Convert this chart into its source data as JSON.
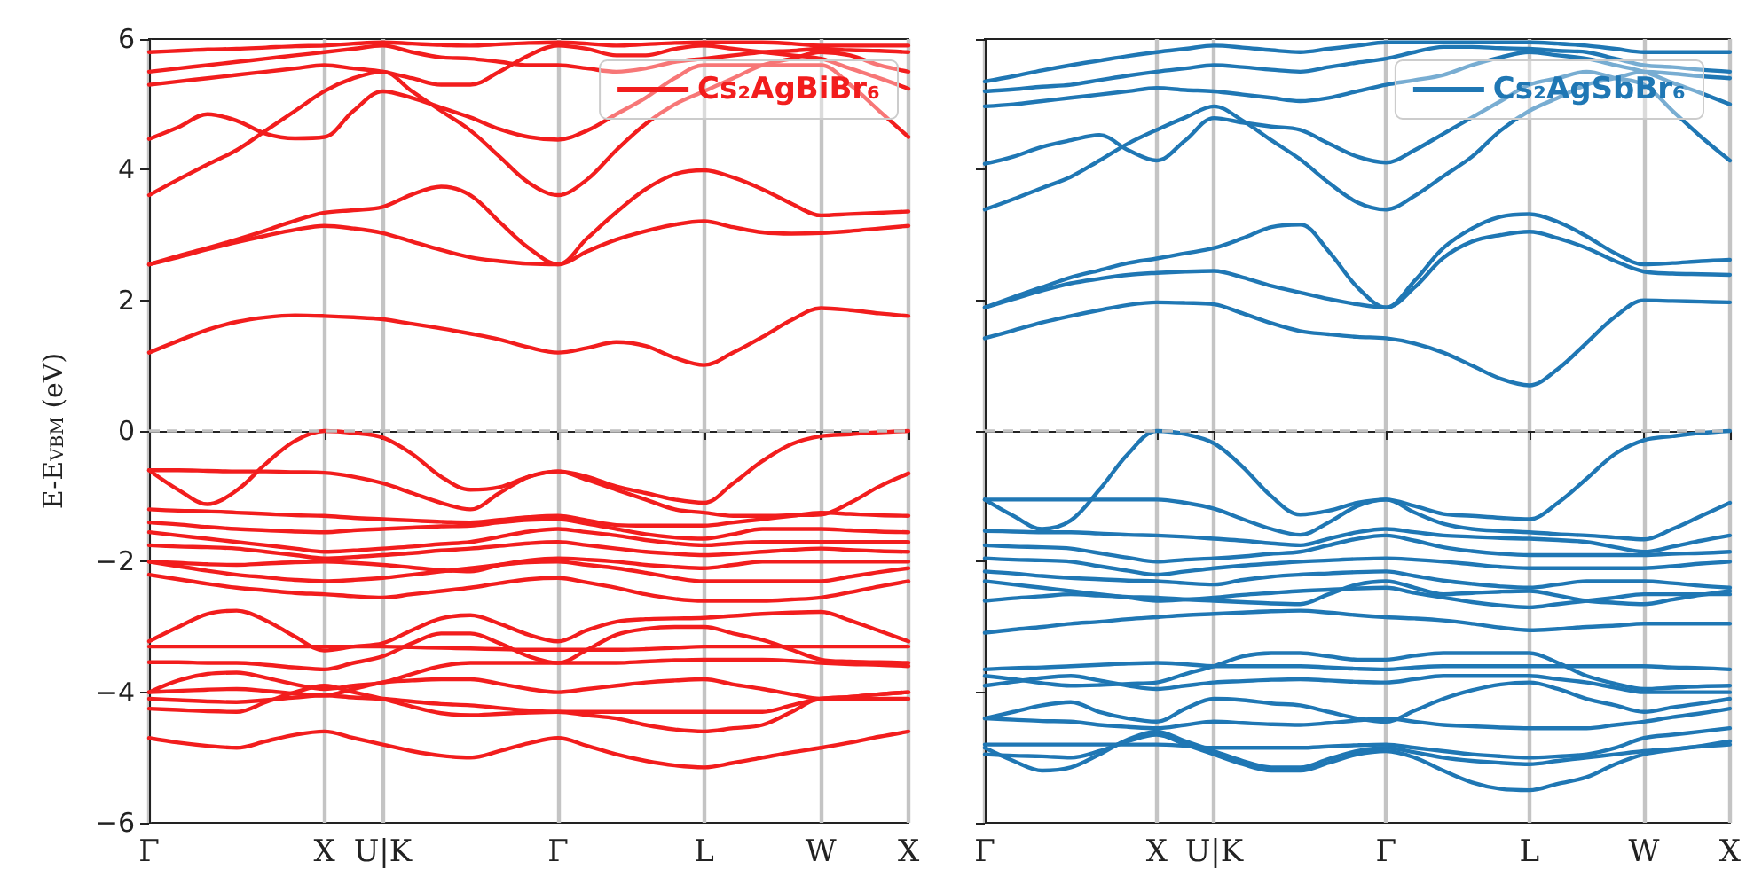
{
  "chart_data": [
    {
      "type": "line",
      "ylabel": "E-E$_{VBM}$ (eV)",
      "categories": [
        "Γ",
        null,
        null,
        null,
        null,
        null,
        "X",
        null,
        "U|K",
        null,
        null,
        null,
        null,
        null,
        "Γ",
        null,
        null,
        null,
        null,
        "L",
        null,
        null,
        null,
        "W",
        null,
        null,
        "X"
      ],
      "ylim": [
        -6,
        6
      ],
      "yticks": [
        -6,
        -4,
        -2,
        0,
        2,
        4,
        6
      ],
      "grid": "x",
      "legend": "top right",
      "marker": "none",
      "line_style": "solid",
      "ref_lines": [
        {
          "axis": "y",
          "value": 0,
          "color": "#c0c0c0",
          "line_style": "dashed"
        }
      ],
      "series": [
        {
          "name": "Cs₂AgBiBr₆",
          "color": "#f21d1d",
          "values": [
            1.2,
            1.38,
            1.55,
            1.67,
            1.74,
            1.77,
            1.76,
            1.74,
            1.71,
            1.64,
            1.57,
            1.49,
            1.4,
            1.28,
            1.2,
            1.27,
            1.36,
            1.3,
            1.12,
            1.01,
            1.2,
            1.44,
            1.7,
            1.88,
            1.85,
            1.8,
            1.76
          ]
        },
        {
          "color": "#f21d1d",
          "values": [
            2.55,
            2.66,
            2.78,
            2.89,
            2.99,
            3.08,
            3.14,
            3.1,
            3.03,
            2.9,
            2.77,
            2.66,
            2.6,
            2.56,
            2.55,
            2.75,
            2.93,
            3.06,
            3.16,
            3.21,
            3.12,
            3.04,
            3.02,
            3.03,
            3.06,
            3.1,
            3.14
          ]
        },
        {
          "color": "#f21d1d",
          "values": [
            2.55,
            2.68,
            2.8,
            2.93,
            3.07,
            3.22,
            3.34,
            3.38,
            3.43,
            3.62,
            3.74,
            3.61,
            3.2,
            2.8,
            2.55,
            2.95,
            3.35,
            3.7,
            3.93,
            3.99,
            3.88,
            3.7,
            3.48,
            3.3,
            3.32,
            3.34,
            3.36
          ]
        },
        {
          "color": "#f21d1d",
          "values": [
            3.61,
            3.85,
            4.08,
            4.3,
            4.6,
            4.9,
            5.2,
            5.4,
            5.5,
            5.2,
            4.9,
            4.6,
            4.2,
            3.8,
            3.61,
            3.85,
            4.3,
            4.7,
            5.0,
            5.2,
            5.4,
            5.6,
            5.7,
            5.8,
            5.75,
            5.6,
            5.5
          ]
        },
        {
          "color": "#f21d1d",
          "values": [
            4.47,
            4.65,
            4.85,
            4.75,
            4.55,
            4.48,
            4.5,
            4.9,
            5.2,
            5.1,
            4.95,
            4.8,
            4.62,
            4.5,
            4.46,
            4.6,
            4.85,
            5.1,
            5.4,
            5.6,
            5.6,
            5.6,
            5.6,
            5.6,
            5.3,
            4.9,
            4.5
          ]
        },
        {
          "color": "#f21d1d",
          "values": [
            5.3,
            5.35,
            5.4,
            5.45,
            5.5,
            5.55,
            5.6,
            5.55,
            5.5,
            5.4,
            5.3,
            5.3,
            5.5,
            5.75,
            5.9,
            5.85,
            5.75,
            5.75,
            5.85,
            5.9,
            5.85,
            5.8,
            5.75,
            5.7,
            5.55,
            5.4,
            5.24
          ]
        },
        {
          "color": "#f21d1d",
          "values": [
            5.5,
            5.55,
            5.6,
            5.65,
            5.7,
            5.75,
            5.8,
            5.85,
            5.9,
            5.8,
            5.72,
            5.7,
            5.65,
            5.6,
            5.6,
            5.55,
            5.5,
            5.55,
            5.65,
            5.7,
            5.75,
            5.8,
            5.82,
            5.85,
            5.83,
            5.82,
            5.8
          ]
        },
        {
          "color": "#f21d1d",
          "values": [
            5.8,
            5.82,
            5.84,
            5.85,
            5.87,
            5.89,
            5.9,
            5.93,
            5.95,
            5.93,
            5.91,
            5.9,
            5.92,
            5.94,
            5.95,
            5.93,
            5.9,
            5.92,
            5.94,
            5.95,
            5.95,
            5.95,
            5.93,
            5.9,
            5.9,
            5.9,
            5.9
          ]
        },
        {
          "color": "#f21d1d",
          "values": [
            -0.6,
            -0.9,
            -1.12,
            -0.91,
            -0.5,
            -0.15,
            0,
            -0.03,
            -0.1,
            -0.35,
            -0.7,
            -0.9,
            -0.86,
            -0.7,
            -0.62,
            -0.7,
            -0.85,
            -0.95,
            -1.05,
            -1.1,
            -0.8,
            -0.46,
            -0.2,
            -0.08,
            -0.05,
            -0.02,
            0
          ]
        },
        {
          "color": "#f21d1d",
          "values": [
            -0.6,
            -0.6,
            -0.61,
            -0.62,
            -0.62,
            -0.63,
            -0.64,
            -0.7,
            -0.8,
            -0.95,
            -1.1,
            -1.2,
            -0.95,
            -0.7,
            -0.62,
            -0.75,
            -0.9,
            -1.05,
            -1.2,
            -1.25,
            -1.3,
            -1.3,
            -1.29,
            -1.28,
            -1.1,
            -0.85,
            -0.65
          ]
        },
        {
          "color": "#f21d1d",
          "values": [
            -1.2,
            -1.22,
            -1.23,
            -1.25,
            -1.27,
            -1.29,
            -1.3,
            -1.33,
            -1.35,
            -1.37,
            -1.39,
            -1.4,
            -1.36,
            -1.32,
            -1.3,
            -1.37,
            -1.44,
            -1.45,
            -1.45,
            -1.45,
            -1.4,
            -1.35,
            -1.3,
            -1.25,
            -1.27,
            -1.29,
            -1.3
          ]
        },
        {
          "color": "#f21d1d",
          "values": [
            -1.4,
            -1.43,
            -1.47,
            -1.5,
            -1.52,
            -1.54,
            -1.55,
            -1.52,
            -1.5,
            -1.48,
            -1.46,
            -1.45,
            -1.4,
            -1.36,
            -1.35,
            -1.42,
            -1.5,
            -1.58,
            -1.63,
            -1.65,
            -1.58,
            -1.5,
            -1.5,
            -1.5,
            -1.52,
            -1.54,
            -1.55
          ]
        },
        {
          "color": "#f21d1d",
          "values": [
            -1.55,
            -1.6,
            -1.65,
            -1.7,
            -1.75,
            -1.8,
            -1.85,
            -1.83,
            -1.8,
            -1.77,
            -1.73,
            -1.7,
            -1.62,
            -1.54,
            -1.5,
            -1.55,
            -1.6,
            -1.67,
            -1.72,
            -1.75,
            -1.72,
            -1.7,
            -1.7,
            -1.7,
            -1.7,
            -1.7,
            -1.7
          ]
        },
        {
          "color": "#f21d1d",
          "values": [
            -1.75,
            -1.77,
            -1.78,
            -1.8,
            -1.85,
            -1.9,
            -1.95,
            -1.93,
            -1.9,
            -1.87,
            -1.83,
            -1.8,
            -1.76,
            -1.72,
            -1.7,
            -1.75,
            -1.8,
            -1.85,
            -1.88,
            -1.9,
            -1.88,
            -1.85,
            -1.82,
            -1.8,
            -1.82,
            -1.84,
            -1.85
          ]
        },
        {
          "color": "#f21d1d",
          "values": [
            -2.0,
            -2.02,
            -2.04,
            -2.05,
            -2.03,
            -2.01,
            -2.0,
            -2.02,
            -2.05,
            -2.09,
            -2.13,
            -2.15,
            -2.05,
            -1.98,
            -1.95,
            -1.97,
            -2.0,
            -2.05,
            -2.08,
            -2.1,
            -2.05,
            -2.0,
            -2.0,
            -2.0,
            -2.0,
            -2.0,
            -2.0
          ]
        },
        {
          "color": "#f21d1d",
          "values": [
            -2.0,
            -2.07,
            -2.14,
            -2.2,
            -2.24,
            -2.28,
            -2.3,
            -2.28,
            -2.25,
            -2.2,
            -2.15,
            -2.1,
            -2.05,
            -2.01,
            -2.0,
            -2.05,
            -2.1,
            -2.17,
            -2.25,
            -2.3,
            -2.3,
            -2.3,
            -2.3,
            -2.3,
            -2.23,
            -2.16,
            -2.1
          ]
        },
        {
          "color": "#f21d1d",
          "values": [
            -2.2,
            -2.27,
            -2.34,
            -2.4,
            -2.44,
            -2.48,
            -2.5,
            -2.53,
            -2.55,
            -2.5,
            -2.45,
            -2.4,
            -2.33,
            -2.27,
            -2.25,
            -2.32,
            -2.4,
            -2.5,
            -2.57,
            -2.6,
            -2.6,
            -2.6,
            -2.58,
            -2.55,
            -2.47,
            -2.38,
            -2.3
          ]
        },
        {
          "color": "#f21d1d",
          "values": [
            -3.22,
            -3.0,
            -2.8,
            -2.75,
            -2.9,
            -3.15,
            -3.36,
            -3.3,
            -3.25,
            -3.05,
            -2.87,
            -2.82,
            -2.95,
            -3.12,
            -3.22,
            -3.05,
            -2.92,
            -2.88,
            -2.87,
            -2.86,
            -2.83,
            -2.8,
            -2.78,
            -2.77,
            -2.9,
            -3.06,
            -3.22
          ]
        },
        {
          "color": "#f21d1d",
          "values": [
            -3.3,
            -3.3,
            -3.3,
            -3.3,
            -3.3,
            -3.3,
            -3.3,
            -3.3,
            -3.3,
            -3.31,
            -3.32,
            -3.33,
            -3.34,
            -3.35,
            -3.35,
            -3.35,
            -3.35,
            -3.34,
            -3.32,
            -3.3,
            -3.3,
            -3.3,
            -3.3,
            -3.3,
            -3.3,
            -3.3,
            -3.3
          ]
        },
        {
          "color": "#f21d1d",
          "values": [
            -3.54,
            -3.54,
            -3.55,
            -3.55,
            -3.58,
            -3.62,
            -3.65,
            -3.55,
            -3.45,
            -3.25,
            -3.1,
            -3.1,
            -3.25,
            -3.45,
            -3.55,
            -3.35,
            -3.12,
            -3.03,
            -3.0,
            -3.0,
            -3.1,
            -3.2,
            -3.35,
            -3.5,
            -3.53,
            -3.54,
            -3.55
          ]
        },
        {
          "color": "#f21d1d",
          "values": [
            -4.0,
            -3.82,
            -3.72,
            -3.7,
            -3.78,
            -3.88,
            -3.95,
            -3.9,
            -3.85,
            -3.72,
            -3.6,
            -3.55,
            -3.55,
            -3.55,
            -3.55,
            -3.55,
            -3.55,
            -3.53,
            -3.51,
            -3.5,
            -3.5,
            -3.5,
            -3.52,
            -3.55,
            -3.57,
            -3.58,
            -3.6
          ]
        },
        {
          "color": "#f21d1d",
          "values": [
            -4.0,
            -3.98,
            -3.96,
            -3.95,
            -3.98,
            -4.02,
            -4.05,
            -3.95,
            -3.85,
            -3.82,
            -3.8,
            -3.8,
            -3.87,
            -3.95,
            -4.0,
            -3.95,
            -3.9,
            -3.85,
            -3.82,
            -3.8,
            -3.88,
            -3.95,
            -4.03,
            -4.1,
            -4.07,
            -4.03,
            -4.0
          ]
        },
        {
          "color": "#f21d1d",
          "values": [
            -4.1,
            -4.12,
            -4.14,
            -4.15,
            -4.12,
            -4.08,
            -4.05,
            -4.08,
            -4.1,
            -4.14,
            -4.18,
            -4.2,
            -4.24,
            -4.28,
            -4.3,
            -4.3,
            -4.3,
            -4.3,
            -4.3,
            -4.3,
            -4.3,
            -4.3,
            -4.2,
            -4.1,
            -4.07,
            -4.03,
            -4.0
          ]
        },
        {
          "color": "#f21d1d",
          "values": [
            -4.25,
            -4.27,
            -4.29,
            -4.3,
            -4.15,
            -4.0,
            -3.9,
            -4.0,
            -4.1,
            -4.22,
            -4.32,
            -4.35,
            -4.33,
            -4.31,
            -4.3,
            -4.35,
            -4.4,
            -4.5,
            -4.57,
            -4.6,
            -4.55,
            -4.5,
            -4.3,
            -4.1,
            -4.1,
            -4.1,
            -4.1
          ]
        },
        {
          "color": "#f21d1d",
          "values": [
            -4.7,
            -4.77,
            -4.82,
            -4.85,
            -4.75,
            -4.65,
            -4.6,
            -4.7,
            -4.8,
            -4.9,
            -4.97,
            -5.0,
            -4.9,
            -4.78,
            -4.7,
            -4.82,
            -4.95,
            -5.05,
            -5.12,
            -5.15,
            -5.08,
            -5.0,
            -4.92,
            -4.85,
            -4.77,
            -4.68,
            -4.6
          ]
        }
      ]
    },
    {
      "type": "line",
      "categories": [
        "Γ",
        null,
        null,
        null,
        null,
        null,
        "X",
        null,
        "U|K",
        null,
        null,
        null,
        null,
        null,
        "Γ",
        null,
        null,
        null,
        null,
        "L",
        null,
        null,
        null,
        "W",
        null,
        null,
        "X"
      ],
      "ylim": [
        -6,
        6
      ],
      "yticks": [
        -6,
        -4,
        -2,
        0,
        2,
        4,
        6
      ],
      "tick_labels": "x",
      "grid": "x",
      "legend": "top right",
      "marker": "none",
      "line_style": "solid",
      "ref_lines": [
        {
          "axis": "y",
          "value": 0,
          "color": "#c0c0c0",
          "line_style": "dashed"
        }
      ],
      "series": [
        {
          "name": "Cs₂AgSbBr₆",
          "color": "#1f77b4",
          "values": [
            1.42,
            1.54,
            1.66,
            1.76,
            1.85,
            1.93,
            1.97,
            1.96,
            1.94,
            1.8,
            1.65,
            1.53,
            1.48,
            1.44,
            1.42,
            1.34,
            1.2,
            1.0,
            0.8,
            0.7,
            0.95,
            1.35,
            1.75,
            2.0,
            1.99,
            1.98,
            1.97
          ]
        },
        {
          "color": "#1f77b4",
          "values": [
            1.89,
            2.02,
            2.15,
            2.26,
            2.33,
            2.39,
            2.42,
            2.44,
            2.45,
            2.35,
            2.22,
            2.12,
            2.02,
            1.94,
            1.89,
            2.2,
            2.65,
            2.9,
            3.0,
            3.05,
            2.95,
            2.8,
            2.6,
            2.44,
            2.41,
            2.4,
            2.39
          ]
        },
        {
          "color": "#1f77b4",
          "values": [
            1.89,
            2.05,
            2.2,
            2.35,
            2.46,
            2.57,
            2.64,
            2.72,
            2.8,
            2.95,
            3.12,
            3.16,
            2.75,
            2.2,
            1.89,
            2.3,
            2.8,
            3.1,
            3.28,
            3.32,
            3.2,
            2.98,
            2.72,
            2.55,
            2.57,
            2.6,
            2.62
          ]
        },
        {
          "color": "#1f77b4",
          "values": [
            3.39,
            3.55,
            3.72,
            3.89,
            4.14,
            4.4,
            4.61,
            4.8,
            4.97,
            4.75,
            4.45,
            4.16,
            3.8,
            3.5,
            3.39,
            3.6,
            3.9,
            4.2,
            4.6,
            4.9,
            5.1,
            5.3,
            5.4,
            5.5,
            5.47,
            5.43,
            5.4
          ]
        },
        {
          "color": "#1f77b4",
          "values": [
            4.09,
            4.2,
            4.35,
            4.45,
            4.53,
            4.3,
            4.14,
            4.45,
            4.79,
            4.72,
            4.66,
            4.61,
            4.4,
            4.2,
            4.11,
            4.3,
            4.55,
            4.8,
            5.05,
            5.3,
            5.4,
            5.5,
            5.4,
            5.3,
            4.9,
            4.5,
            4.14
          ]
        },
        {
          "color": "#1f77b4",
          "values": [
            4.97,
            5.0,
            5.05,
            5.1,
            5.15,
            5.2,
            5.25,
            5.22,
            5.2,
            5.15,
            5.1,
            5.05,
            5.1,
            5.2,
            5.3,
            5.37,
            5.45,
            5.6,
            5.72,
            5.8,
            5.75,
            5.7,
            5.6,
            5.5,
            5.33,
            5.17,
            5.0
          ]
        },
        {
          "color": "#1f77b4",
          "values": [
            5.2,
            5.23,
            5.27,
            5.3,
            5.37,
            5.44,
            5.5,
            5.55,
            5.6,
            5.57,
            5.53,
            5.5,
            5.57,
            5.64,
            5.7,
            5.8,
            5.88,
            5.88,
            5.86,
            5.85,
            5.82,
            5.8,
            5.7,
            5.6,
            5.57,
            5.53,
            5.5
          ]
        },
        {
          "color": "#1f77b4",
          "values": [
            5.35,
            5.43,
            5.52,
            5.6,
            5.67,
            5.74,
            5.8,
            5.85,
            5.9,
            5.87,
            5.83,
            5.8,
            5.85,
            5.9,
            5.95,
            5.95,
            5.95,
            5.95,
            5.95,
            5.95,
            5.93,
            5.9,
            5.85,
            5.8,
            5.8,
            5.8,
            5.8
          ]
        },
        {
          "color": "#1f77b4",
          "values": [
            -1.05,
            -1.3,
            -1.5,
            -1.37,
            -0.9,
            -0.35,
            0,
            -0.05,
            -0.19,
            -0.55,
            -1.0,
            -1.28,
            -1.22,
            -1.1,
            -1.05,
            -1.15,
            -1.27,
            -1.3,
            -1.33,
            -1.35,
            -1.1,
            -0.73,
            -0.35,
            -0.14,
            -0.08,
            -0.03,
            0
          ]
        },
        {
          "color": "#1f77b4",
          "values": [
            -1.05,
            -1.05,
            -1.05,
            -1.05,
            -1.05,
            -1.05,
            -1.05,
            -1.1,
            -1.19,
            -1.35,
            -1.5,
            -1.59,
            -1.4,
            -1.15,
            -1.05,
            -1.25,
            -1.42,
            -1.5,
            -1.53,
            -1.55,
            -1.58,
            -1.6,
            -1.63,
            -1.66,
            -1.5,
            -1.3,
            -1.1
          ]
        },
        {
          "color": "#1f77b4",
          "values": [
            -1.53,
            -1.54,
            -1.55,
            -1.55,
            -1.57,
            -1.59,
            -1.6,
            -1.62,
            -1.65,
            -1.68,
            -1.72,
            -1.75,
            -1.65,
            -1.55,
            -1.5,
            -1.55,
            -1.6,
            -1.62,
            -1.64,
            -1.65,
            -1.67,
            -1.7,
            -1.78,
            -1.85,
            -1.77,
            -1.68,
            -1.6
          ]
        },
        {
          "color": "#1f77b4",
          "values": [
            -1.75,
            -1.77,
            -1.78,
            -1.8,
            -1.87,
            -1.94,
            -2.0,
            -1.97,
            -1.95,
            -1.92,
            -1.88,
            -1.85,
            -1.75,
            -1.65,
            -1.6,
            -1.68,
            -1.78,
            -1.84,
            -1.88,
            -1.9,
            -1.9,
            -1.9,
            -1.9,
            -1.9,
            -1.88,
            -1.87,
            -1.85
          ]
        },
        {
          "color": "#1f77b4",
          "values": [
            -1.95,
            -1.97,
            -1.98,
            -2.0,
            -2.07,
            -2.14,
            -2.2,
            -2.15,
            -2.1,
            -2.06,
            -2.03,
            -2.0,
            -1.98,
            -1.96,
            -1.95,
            -1.97,
            -2.0,
            -2.04,
            -2.08,
            -2.1,
            -2.1,
            -2.1,
            -2.1,
            -2.1,
            -2.07,
            -2.03,
            -2.0
          ]
        },
        {
          "color": "#1f77b4",
          "values": [
            -2.15,
            -2.18,
            -2.22,
            -2.25,
            -2.27,
            -2.29,
            -2.3,
            -2.33,
            -2.35,
            -2.28,
            -2.23,
            -2.2,
            -2.18,
            -2.16,
            -2.15,
            -2.22,
            -2.29,
            -2.34,
            -2.38,
            -2.4,
            -2.35,
            -2.3,
            -2.3,
            -2.3,
            -2.33,
            -2.37,
            -2.4
          ]
        },
        {
          "color": "#1f77b4",
          "values": [
            -2.3,
            -2.35,
            -2.4,
            -2.45,
            -2.5,
            -2.55,
            -2.6,
            -2.58,
            -2.55,
            -2.51,
            -2.48,
            -2.45,
            -2.43,
            -2.41,
            -2.4,
            -2.48,
            -2.55,
            -2.62,
            -2.67,
            -2.7,
            -2.65,
            -2.6,
            -2.55,
            -2.5,
            -2.5,
            -2.5,
            -2.5
          ]
        },
        {
          "color": "#1f77b4",
          "values": [
            -2.6,
            -2.56,
            -2.53,
            -2.5,
            -2.52,
            -2.54,
            -2.55,
            -2.58,
            -2.6,
            -2.62,
            -2.64,
            -2.65,
            -2.5,
            -2.35,
            -2.3,
            -2.4,
            -2.5,
            -2.48,
            -2.46,
            -2.45,
            -2.52,
            -2.6,
            -2.63,
            -2.65,
            -2.58,
            -2.51,
            -2.45
          ]
        },
        {
          "color": "#1f77b4",
          "values": [
            -3.09,
            -3.04,
            -3.0,
            -2.95,
            -2.92,
            -2.88,
            -2.85,
            -2.82,
            -2.8,
            -2.78,
            -2.76,
            -2.75,
            -2.78,
            -2.82,
            -2.85,
            -2.87,
            -2.9,
            -2.95,
            -3.01,
            -3.05,
            -3.03,
            -3.0,
            -2.98,
            -2.95,
            -2.95,
            -2.95,
            -2.95
          ]
        },
        {
          "color": "#1f77b4",
          "values": [
            -3.65,
            -3.63,
            -3.62,
            -3.6,
            -3.58,
            -3.56,
            -3.55,
            -3.57,
            -3.6,
            -3.6,
            -3.6,
            -3.6,
            -3.62,
            -3.64,
            -3.65,
            -3.62,
            -3.6,
            -3.6,
            -3.6,
            -3.6,
            -3.6,
            -3.6,
            -3.6,
            -3.6,
            -3.62,
            -3.63,
            -3.65
          ]
        },
        {
          "color": "#1f77b4",
          "values": [
            -3.75,
            -3.8,
            -3.86,
            -3.9,
            -3.89,
            -3.87,
            -3.85,
            -3.72,
            -3.6,
            -3.45,
            -3.4,
            -3.4,
            -3.45,
            -3.5,
            -3.5,
            -3.44,
            -3.4,
            -3.4,
            -3.4,
            -3.4,
            -3.55,
            -3.75,
            -3.87,
            -3.95,
            -3.93,
            -3.91,
            -3.9
          ]
        },
        {
          "color": "#1f77b4",
          "values": [
            -3.9,
            -3.84,
            -3.78,
            -3.75,
            -3.82,
            -3.9,
            -3.95,
            -3.9,
            -3.85,
            -3.83,
            -3.81,
            -3.8,
            -3.82,
            -3.84,
            -3.85,
            -3.8,
            -3.75,
            -3.75,
            -3.75,
            -3.75,
            -3.8,
            -3.85,
            -3.93,
            -4.0,
            -4.0,
            -4.0,
            -4.0
          ]
        },
        {
          "color": "#1f77b4",
          "values": [
            -4.4,
            -4.3,
            -4.2,
            -4.15,
            -4.3,
            -4.4,
            -4.45,
            -4.25,
            -4.1,
            -4.12,
            -4.17,
            -4.2,
            -4.3,
            -4.4,
            -4.45,
            -4.28,
            -4.1,
            -3.97,
            -3.88,
            -3.85,
            -3.95,
            -4.1,
            -4.2,
            -4.3,
            -4.23,
            -4.17,
            -4.1
          ]
        },
        {
          "color": "#1f77b4",
          "values": [
            -4.4,
            -4.42,
            -4.44,
            -4.45,
            -4.5,
            -4.53,
            -4.55,
            -4.5,
            -4.45,
            -4.47,
            -4.49,
            -4.5,
            -4.47,
            -4.43,
            -4.4,
            -4.45,
            -4.5,
            -4.52,
            -4.54,
            -4.55,
            -4.55,
            -4.55,
            -4.5,
            -4.45,
            -4.38,
            -4.32,
            -4.25
          ]
        },
        {
          "color": "#1f77b4",
          "values": [
            -4.8,
            -4.8,
            -4.8,
            -4.8,
            -4.8,
            -4.8,
            -4.8,
            -4.82,
            -4.85,
            -4.85,
            -4.85,
            -4.85,
            -4.83,
            -4.81,
            -4.8,
            -4.85,
            -4.9,
            -4.95,
            -4.98,
            -5.0,
            -4.98,
            -4.95,
            -4.85,
            -4.7,
            -4.65,
            -4.6,
            -4.55
          ]
        },
        {
          "color": "#1f77b4",
          "values": [
            -4.85,
            -5.05,
            -5.2,
            -5.15,
            -4.95,
            -4.72,
            -4.6,
            -4.75,
            -4.9,
            -5.05,
            -5.15,
            -5.15,
            -5.02,
            -4.9,
            -4.85,
            -4.92,
            -5.0,
            -5.05,
            -5.08,
            -5.1,
            -5.05,
            -5.0,
            -4.95,
            -4.9,
            -4.87,
            -4.83,
            -4.8
          ]
        },
        {
          "color": "#1f77b4",
          "values": [
            -4.95,
            -4.97,
            -4.98,
            -5.0,
            -4.9,
            -4.75,
            -4.65,
            -4.8,
            -4.95,
            -5.1,
            -5.2,
            -5.2,
            -5.08,
            -4.95,
            -4.9,
            -5.0,
            -5.2,
            -5.38,
            -5.48,
            -5.5,
            -5.4,
            -5.3,
            -5.1,
            -4.95,
            -4.88,
            -4.82,
            -4.75
          ]
        }
      ]
    }
  ]
}
